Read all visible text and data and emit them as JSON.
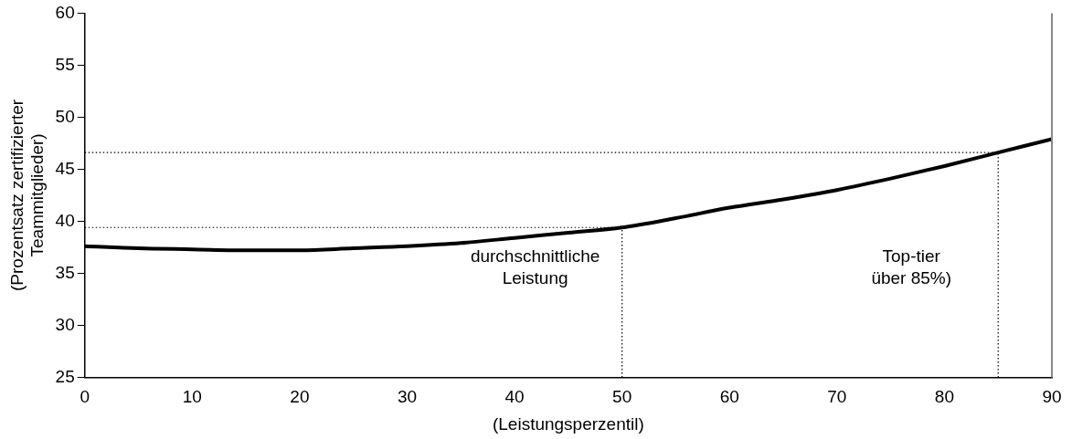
{
  "chart_data": {
    "type": "line",
    "xlabel": "(Leistungsperzentil)",
    "ylabel": "(Prozentsatz zertifizierter\nTeammitglieder)",
    "x": [
      0,
      5,
      10,
      15,
      20,
      25,
      30,
      35,
      40,
      45,
      50,
      55,
      60,
      65,
      70,
      75,
      80,
      85,
      90
    ],
    "series": [
      {
        "color": "#000000",
        "values": [
          37.6,
          37.4,
          37.3,
          37.2,
          37.2,
          37.4,
          37.6,
          37.9,
          38.4,
          38.9,
          39.4,
          40.3,
          41.3,
          42.1,
          43.0,
          44.1,
          45.3,
          46.6,
          47.9
        ]
      }
    ],
    "xlim": [
      0,
      90
    ],
    "xticks": [
      0,
      10,
      20,
      30,
      40,
      50,
      60,
      70,
      80,
      90
    ],
    "ylim": [
      25,
      60
    ],
    "yticks": [
      25,
      30,
      35,
      40,
      45,
      50,
      55,
      60
    ],
    "grid": false,
    "legend": false,
    "marker": "none",
    "line_style": "solid",
    "ref_lines": [
      {
        "axis": "x",
        "value": 50,
        "line_style": "dotted"
      },
      {
        "axis": "x",
        "value": 85,
        "line_style": "dotted"
      },
      {
        "axis": "y",
        "value": 39.4,
        "line_style": "dotted"
      },
      {
        "axis": "y",
        "value": 46.6,
        "line_style": "dotted"
      }
    ],
    "annotations": [
      "durchschnittliche\nLeistung",
      "Top-tier\nüber 85%)"
    ]
  }
}
